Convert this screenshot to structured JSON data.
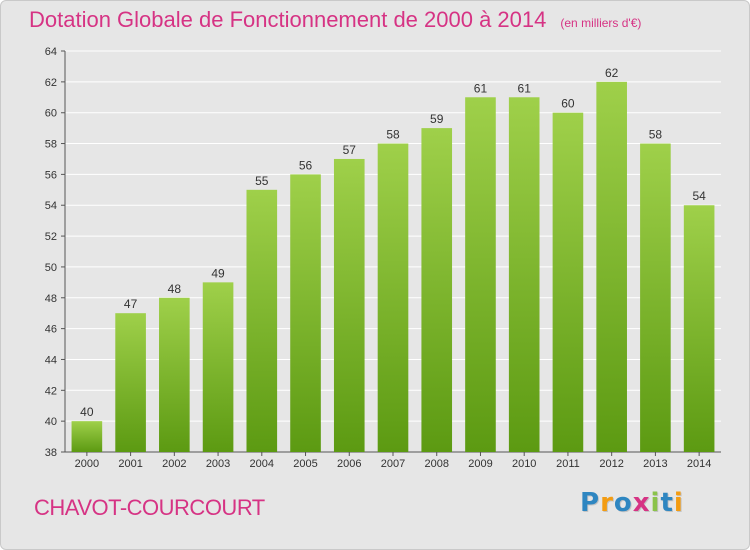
{
  "title": "Dotation Globale de Fonctionnement de 2000 à 2014",
  "subtitle": "(en milliers d'€)",
  "commune": "CHAVOT-COURCOURT",
  "brand": {
    "text": "Proxiti",
    "letters": [
      {
        "ch": "P",
        "color": "#2e86c1"
      },
      {
        "ch": "r",
        "color": "#f39c12"
      },
      {
        "ch": "o",
        "color": "#2e86c1"
      },
      {
        "ch": "x",
        "color": "#d63384"
      },
      {
        "ch": "i",
        "color": "#8bc34a"
      },
      {
        "ch": "t",
        "color": "#2e86c1"
      },
      {
        "ch": "i",
        "color": "#f39c12"
      }
    ]
  },
  "colors": {
    "title": "#d63384",
    "bar_light": "#9fd04a",
    "bar_dark": "#5c9a12",
    "background": "#e6e6e6",
    "grid": "#ffffff"
  },
  "chart_data": {
    "type": "bar",
    "categories": [
      "2000",
      "2001",
      "2002",
      "2003",
      "2004",
      "2005",
      "2006",
      "2007",
      "2008",
      "2009",
      "2010",
      "2011",
      "2012",
      "2013",
      "2014"
    ],
    "values": [
      40,
      47,
      48,
      49,
      55,
      56,
      57,
      58,
      59,
      61,
      61,
      60,
      62,
      58,
      54
    ],
    "ylim": [
      38,
      64
    ],
    "yticks": [
      38,
      40,
      42,
      44,
      46,
      48,
      50,
      52,
      54,
      56,
      58,
      60,
      62,
      64
    ],
    "grid": true,
    "legend": "none"
  }
}
